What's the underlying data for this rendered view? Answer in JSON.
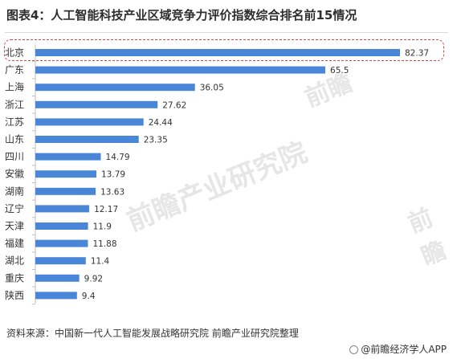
{
  "title": "图表4：人工智能科技产业区域竞争力评价指数综合排名前15情况",
  "source": "资料来源：中国新一代人工智能发展战略研究院 前瞻产业研究院整理",
  "brand": "@前瞻经济学人APP",
  "watermark": {
    "main": "前瞻产业研究院",
    "side": "前瞻"
  },
  "colors": {
    "bar": "#4a86d8",
    "highlight_border": "#d64545",
    "axis": "#bfbfbf",
    "watermark": "#e6e6e6"
  },
  "highlight_category": "北京",
  "chart_data": {
    "type": "bar",
    "orientation": "horizontal",
    "categories": [
      "北京",
      "广东",
      "上海",
      "浙江",
      "江苏",
      "山东",
      "四川",
      "安徽",
      "湖南",
      "辽宁",
      "天津",
      "福建",
      "湖北",
      "重庆",
      "陕西"
    ],
    "values": [
      82.37,
      65.5,
      36.05,
      27.62,
      24.44,
      23.35,
      14.79,
      13.79,
      13.63,
      12.17,
      11.9,
      11.88,
      11.4,
      9.92,
      9.4
    ],
    "value_labels": [
      "82.37",
      "65.5",
      "36.05",
      "27.62",
      "24.44",
      "23.35",
      "14.79",
      "13.79",
      "13.63",
      "12.17",
      "11.9",
      "11.88",
      "11.4",
      "9.92",
      "9.4"
    ],
    "xlim": [
      0,
      82.37
    ],
    "grid": false,
    "legend": "none"
  }
}
